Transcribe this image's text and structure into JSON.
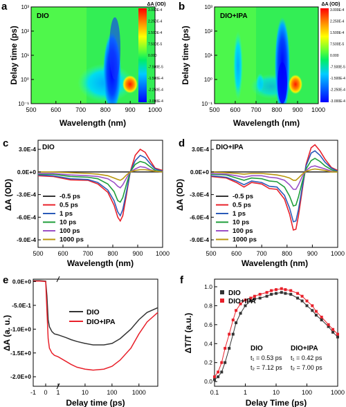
{
  "panel_letters": [
    "a",
    "b",
    "c",
    "d",
    "e",
    "f"
  ],
  "chart_data": [
    {
      "panel": "a",
      "type": "heatmap",
      "label": "DIO",
      "xlabel": "Wavelength (nm)",
      "ylabel": "Delay time (ps)",
      "xlim": [
        500,
        1000
      ],
      "xticks": [
        500,
        600,
        700,
        800,
        900,
        1000
      ],
      "yscale": "log",
      "ylim": [
        0.1,
        1000
      ],
      "ytick_labels": [
        "10⁻¹",
        "10⁰",
        "10¹",
        "10²",
        "10³"
      ],
      "colorbar_title": "ΔA (OD)",
      "colorbar_ticks": [
        "3.000E-4",
        "2.250E-4",
        "1.500E-4",
        "7.500E-5",
        "0.000",
        "-7.500E-5",
        "-1.500E-4",
        "-2.250E-4",
        "-3.000E-4"
      ],
      "colormap": [
        "#ff0000",
        "#ffaa00",
        "#ffff00",
        "#66ff33",
        "#00ee66",
        "#00ccff",
        "#0066ff",
        "#0000ff"
      ],
      "features": [
        {
          "type": "bleach",
          "wavelength": 825,
          "delay_range": [
            0.3,
            300
          ],
          "value": -0.0003
        },
        {
          "type": "bleach",
          "wavelength": 730,
          "delay_range": [
            0.5,
            2
          ],
          "value": -0.0001
        },
        {
          "type": "absorption",
          "wavelength": 910,
          "delay_range": [
            0.5,
            2
          ],
          "value": 0.0003
        }
      ]
    },
    {
      "panel": "b",
      "type": "heatmap",
      "label": "DIO+IPA",
      "xlabel": "Wavelength (nm)",
      "ylabel": "Delay time (ps)",
      "xlim": [
        500,
        1000
      ],
      "xticks": [
        500,
        600,
        700,
        800,
        900,
        1000
      ],
      "yscale": "log",
      "ylim": [
        0.1,
        1000
      ],
      "ytick_labels": [
        "10⁻¹",
        "10⁰",
        "10¹",
        "10²",
        "10³"
      ],
      "colorbar_title": "ΔA (OD)",
      "colorbar_ticks": [
        "3.000E-4",
        "2.250E-4",
        "1.500E-4",
        "7.500E-5",
        "0.000",
        "-7.500E-5",
        "-1.500E-4",
        "-2.250E-4",
        "-3.000E-4"
      ],
      "features": [
        {
          "type": "bleach",
          "wavelength": 830,
          "delay_range": [
            0.3,
            300
          ],
          "value": -0.0003
        },
        {
          "type": "bleach",
          "wavelength": 630,
          "delay_range": [
            0.5,
            30
          ],
          "value": -0.00012
        },
        {
          "type": "bleach",
          "wavelength": 730,
          "delay_range": [
            0.5,
            2
          ],
          "value": -0.00012
        },
        {
          "type": "absorption",
          "wavelength": 905,
          "delay_range": [
            0.5,
            2
          ],
          "value": 0.0003
        }
      ]
    },
    {
      "panel": "c",
      "type": "line",
      "label": "DIO",
      "xlabel": "Wavelength (nm)",
      "ylabel": "ΔA (OD)",
      "xlim": [
        500,
        1000
      ],
      "ylim": [
        -0.001,
        0.00042
      ],
      "xticks": [
        500,
        600,
        700,
        800,
        900,
        1000
      ],
      "yticks": [
        0.0003,
        0,
        -0.0003,
        -0.0006,
        -0.0009
      ],
      "ytick_labels": [
        "3.0E-4",
        "0.0E+0",
        "-3.0E-4",
        "-6.0E-4",
        "-9.0E-4"
      ],
      "legend_position": "bottom-left",
      "x": [
        500,
        560,
        630,
        700,
        740,
        780,
        805,
        820,
        830,
        840,
        855,
        870,
        890,
        910,
        930,
        950,
        970,
        1000
      ],
      "series": [
        {
          "name": "-0.5 ps",
          "color": "#333333",
          "values": [
            0,
            0,
            0,
            0,
            0,
            0,
            0,
            0,
            0,
            0,
            0,
            0,
            0,
            0,
            0,
            0,
            0,
            0
          ]
        },
        {
          "name": "0.5 ps",
          "color": "#e8202a",
          "values": [
            -5e-05,
            -6e-05,
            -0.000105,
            -0.00011,
            -0.00016,
            -0.00027,
            -0.00044,
            -0.0006,
            -0.00065,
            -0.00058,
            -0.0003,
            0,
            0.00022,
            0.0003,
            0.00026,
            0.00015,
            5e-05,
            2e-05
          ]
        },
        {
          "name": "1 ps",
          "color": "#2a5ab8",
          "values": [
            -4e-05,
            -5e-05,
            -9e-05,
            -0.0001,
            -0.00014,
            -0.00024,
            -0.00038,
            -0.00053,
            -0.00058,
            -0.0005,
            -0.00026,
            0,
            0.00015,
            0.00022,
            0.00019,
            0.00011,
            4e-05,
            1e-05
          ]
        },
        {
          "name": "10 ps",
          "color": "#1e9e3a",
          "values": [
            -3e-05,
            -3e-05,
            -6e-05,
            -7e-05,
            -9e-05,
            -0.00016,
            -0.00026,
            -0.00038,
            -0.0004,
            -0.00034,
            -0.00016,
            0,
            0.0001,
            0.00014,
            0.00012,
            7e-05,
            2e-05,
            0
          ]
        },
        {
          "name": "100 ps",
          "color": "#9a4ec6",
          "values": [
            -2e-05,
            -2e-05,
            -4e-05,
            -5e-05,
            -6e-05,
            -9e-05,
            -0.00014,
            -0.00019,
            -0.00021,
            -0.00017,
            -8e-05,
            0,
            4e-05,
            7e-05,
            6e-05,
            3e-05,
            1e-05,
            0
          ]
        },
        {
          "name": "1000 ps",
          "color": "#b8960c",
          "values": [
            0,
            0,
            -1e-05,
            -2e-05,
            -3e-05,
            -5e-05,
            -8e-05,
            -0.0001,
            -0.00011,
            -9e-05,
            -4e-05,
            0,
            2e-05,
            3e-05,
            3e-05,
            2e-05,
            1e-05,
            0
          ]
        }
      ]
    },
    {
      "panel": "d",
      "type": "line",
      "label": "DIO+IPA",
      "xlabel": "Wavelength (nm)",
      "ylabel": "ΔA (OD)",
      "xlim": [
        500,
        1000
      ],
      "ylim": [
        -0.001,
        0.00042
      ],
      "xticks": [
        500,
        600,
        700,
        800,
        900,
        1000
      ],
      "yticks": [
        0.0003,
        0,
        -0.0003,
        -0.0006,
        -0.0009
      ],
      "ytick_labels": [
        "3.0E-4",
        "0.0E+0",
        "-3.0E-4",
        "-6.0E-4",
        "-9.0E-4"
      ],
      "legend_position": "bottom-left",
      "x": [
        500,
        560,
        600,
        630,
        660,
        700,
        730,
        760,
        790,
        810,
        825,
        835,
        845,
        860,
        875,
        895,
        910,
        930,
        950,
        975,
        1000
      ],
      "series": [
        {
          "name": "-0.5 ps",
          "color": "#333333",
          "values": [
            0,
            0,
            0,
            0,
            0,
            0,
            0,
            0,
            0,
            0,
            0,
            0,
            0,
            0,
            0,
            0,
            0,
            0,
            0,
            0,
            0
          ]
        },
        {
          "name": "0.5 ps",
          "color": "#e8202a",
          "values": [
            -6e-05,
            -8e-05,
            -0.00014,
            -0.0002,
            -0.00014,
            -0.00016,
            -0.00022,
            -0.00023,
            -0.00036,
            -0.00056,
            -0.00077,
            -0.00076,
            -0.00058,
            -0.00024,
            0.0001,
            0.00032,
            0.00036,
            0.00028,
            0.00017,
            6e-05,
            2e-05
          ]
        },
        {
          "name": "1 ps",
          "color": "#2a5ab8",
          "values": [
            -5e-05,
            -7e-05,
            -0.00012,
            -0.00017,
            -0.00012,
            -0.00014,
            -0.00019,
            -0.0002,
            -0.00031,
            -0.00048,
            -0.00066,
            -0.00065,
            -0.0005,
            -0.0002,
            8e-05,
            0.00025,
            0.00028,
            0.00022,
            0.00013,
            5e-05,
            1e-05
          ]
        },
        {
          "name": "10 ps",
          "color": "#1e9e3a",
          "values": [
            -3e-05,
            -4e-05,
            -8e-05,
            -0.00011,
            -8e-05,
            -9e-05,
            -0.00012,
            -0.00013,
            -0.0002,
            -0.00032,
            -0.00045,
            -0.00044,
            -0.00033,
            -0.00013,
            4e-05,
            0.00015,
            0.00018,
            0.00014,
            8e-05,
            3e-05,
            0
          ]
        },
        {
          "name": "100 ps",
          "color": "#9a4ec6",
          "values": [
            -2e-05,
            -3e-05,
            -5e-05,
            -7e-05,
            -5e-05,
            -5e-05,
            -7e-05,
            -8e-05,
            -0.00011,
            -0.00017,
            -0.00023,
            -0.00023,
            -0.00017,
            -6e-05,
            2e-05,
            7e-05,
            8e-05,
            6e-05,
            4e-05,
            1e-05,
            0
          ]
        },
        {
          "name": "1000 ps",
          "color": "#b8960c",
          "values": [
            0,
            -1e-05,
            -2e-05,
            -3e-05,
            -2e-05,
            -2e-05,
            -3e-05,
            -4e-05,
            -6e-05,
            -8e-05,
            -0.00011,
            -0.00011,
            -8e-05,
            -3e-05,
            1e-05,
            3e-05,
            4e-05,
            3e-05,
            2e-05,
            0,
            0
          ]
        }
      ]
    },
    {
      "panel": "e",
      "type": "line",
      "xlabel": "Delay time (ps)",
      "ylabel": "ΔA (a. u.)",
      "ylim": [
        -2.2,
        0.05
      ],
      "yticks": [
        0,
        -0.5,
        -1.0,
        -1.5,
        -2.0
      ],
      "ytick_labels": [
        "0.0E+0",
        "-5.0E-1",
        "-1.0E+0",
        "-1.5E+0",
        "-2.0E+0"
      ],
      "xscale": "linear-then-log",
      "axis_break": 1,
      "x_linear_range": [
        -1,
        1
      ],
      "x_log_range": [
        1,
        5000
      ],
      "xtick_labels": [
        "-1",
        "0",
        "1",
        "10",
        "100",
        "1000"
      ],
      "legend_position": "top-right",
      "series": [
        {
          "name": "DIO",
          "color": "#333333",
          "x": [
            -1,
            -0.5,
            0,
            0.1,
            0.2,
            0.3,
            0.5,
            0.7,
            1,
            2,
            3,
            5,
            10,
            20,
            50,
            100,
            200,
            500,
            1000,
            2000,
            5000
          ],
          "values": [
            0.02,
            0.02,
            0.01,
            -0.3,
            -0.8,
            -0.95,
            -1.05,
            -1.1,
            -1.12,
            -1.18,
            -1.22,
            -1.26,
            -1.3,
            -1.33,
            -1.33,
            -1.3,
            -1.2,
            -1.0,
            -0.8,
            -0.65,
            -0.55
          ]
        },
        {
          "name": "DIO+IPA",
          "color": "#e8202a",
          "x": [
            -1,
            -0.5,
            0,
            0.1,
            0.2,
            0.3,
            0.5,
            0.7,
            1,
            2,
            3,
            5,
            10,
            20,
            50,
            100,
            200,
            500,
            1000,
            2000,
            5000
          ],
          "values": [
            0.01,
            0.01,
            0,
            -0.6,
            -1.2,
            -1.4,
            -1.5,
            -1.55,
            -1.58,
            -1.68,
            -1.74,
            -1.8,
            -1.84,
            -1.86,
            -1.84,
            -1.78,
            -1.65,
            -1.4,
            -1.1,
            -0.85,
            -0.65
          ]
        }
      ]
    },
    {
      "panel": "f",
      "type": "scatter",
      "xlabel": "Delay Time (ps)",
      "ylabel": "ΔT/T (a.u.)",
      "xscale": "log",
      "xlim": [
        0.1,
        1000
      ],
      "ylim": [
        -0.05,
        1.08
      ],
      "xticks": [
        0.1,
        1,
        10,
        100,
        1000
      ],
      "xtick_labels": [
        "0.1",
        "1",
        "10",
        "100",
        "1000"
      ],
      "yticks": [
        0,
        0.2,
        0.4,
        0.6,
        0.8,
        1.0
      ],
      "ytick_labels": [
        "0.0",
        "0.2",
        "0.4",
        "0.6",
        "0.8",
        "1.0"
      ],
      "legend_position": "top-left",
      "series": [
        {
          "name": "DIO",
          "color": "#333333",
          "marker": "square",
          "x": [
            0.1,
            0.13,
            0.17,
            0.22,
            0.3,
            0.4,
            0.5,
            0.7,
            1,
            1.5,
            2,
            3,
            5,
            7,
            10,
            15,
            20,
            30,
            50,
            70,
            100,
            150,
            200,
            300,
            500,
            700,
            1000
          ],
          "values": [
            0.02,
            0.05,
            0.1,
            0.2,
            0.35,
            0.5,
            0.62,
            0.72,
            0.8,
            0.85,
            0.87,
            0.88,
            0.9,
            0.92,
            0.93,
            0.94,
            0.93,
            0.92,
            0.88,
            0.85,
            0.8,
            0.75,
            0.7,
            0.65,
            0.58,
            0.52,
            0.47
          ],
          "fit_label": "DIO",
          "t1": "t₁ = 0.53 ps",
          "t2": "t₂ = 7.12 ps"
        },
        {
          "name": "DIO+IPA",
          "color": "#e8202a",
          "marker": "square",
          "x": [
            0.1,
            0.13,
            0.17,
            0.22,
            0.3,
            0.4,
            0.5,
            0.7,
            1,
            1.5,
            2,
            3,
            5,
            7,
            10,
            15,
            20,
            30,
            50,
            70,
            100,
            150,
            200,
            300,
            500,
            700,
            1000
          ],
          "values": [
            0.05,
            0.1,
            0.2,
            0.35,
            0.5,
            0.65,
            0.75,
            0.82,
            0.86,
            0.88,
            0.9,
            0.92,
            0.94,
            0.96,
            0.97,
            0.98,
            0.97,
            0.96,
            0.93,
            0.9,
            0.85,
            0.8,
            0.74,
            0.68,
            0.6,
            0.55,
            0.5
          ],
          "fit_label": "DIO+IPA",
          "t1": "t₁ = 0.42 ps",
          "t2": "t₂ = 7.00 ps"
        }
      ]
    }
  ]
}
